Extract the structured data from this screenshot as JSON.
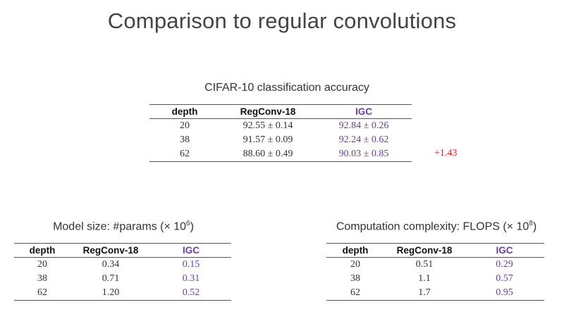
{
  "slide": {
    "title": "Comparison to regular convolutions"
  },
  "accuracy_table": {
    "caption": "CIFAR-10 classification accuracy",
    "headers": [
      "depth",
      "RegConv-18",
      "IGC"
    ],
    "rows": [
      [
        "20",
        "92.55 ± 0.14",
        "92.84 ± 0.26"
      ],
      [
        "38",
        "91.57 ± 0.09",
        "92.24 ± 0.62"
      ],
      [
        "62",
        "88.60 ± 0.49",
        "90.03 ± 0.85"
      ]
    ],
    "gain_note": "+1.43"
  },
  "params_table": {
    "caption_prefix": "Model size: #params (× 10",
    "caption_exp": "6",
    "caption_suffix": ")",
    "headers": [
      "depth",
      "RegConv-18",
      "IGC"
    ],
    "rows": [
      [
        "20",
        "0.34",
        "0.15"
      ],
      [
        "38",
        "0.71",
        "0.31"
      ],
      [
        "62",
        "1.20",
        "0.52"
      ]
    ]
  },
  "flops_table": {
    "caption_prefix": "Computation complexity: FLOPS (× 10",
    "caption_exp": "8",
    "caption_suffix": ")",
    "headers": [
      "depth",
      "RegConv-18",
      "IGC"
    ],
    "rows": [
      [
        "20",
        "0.51",
        "0.29"
      ],
      [
        "38",
        "1.1",
        "0.57"
      ],
      [
        "62",
        "1.7",
        "0.95"
      ]
    ]
  },
  "colors": {
    "igc": "#6b3fa0",
    "gain": "#e02020"
  }
}
